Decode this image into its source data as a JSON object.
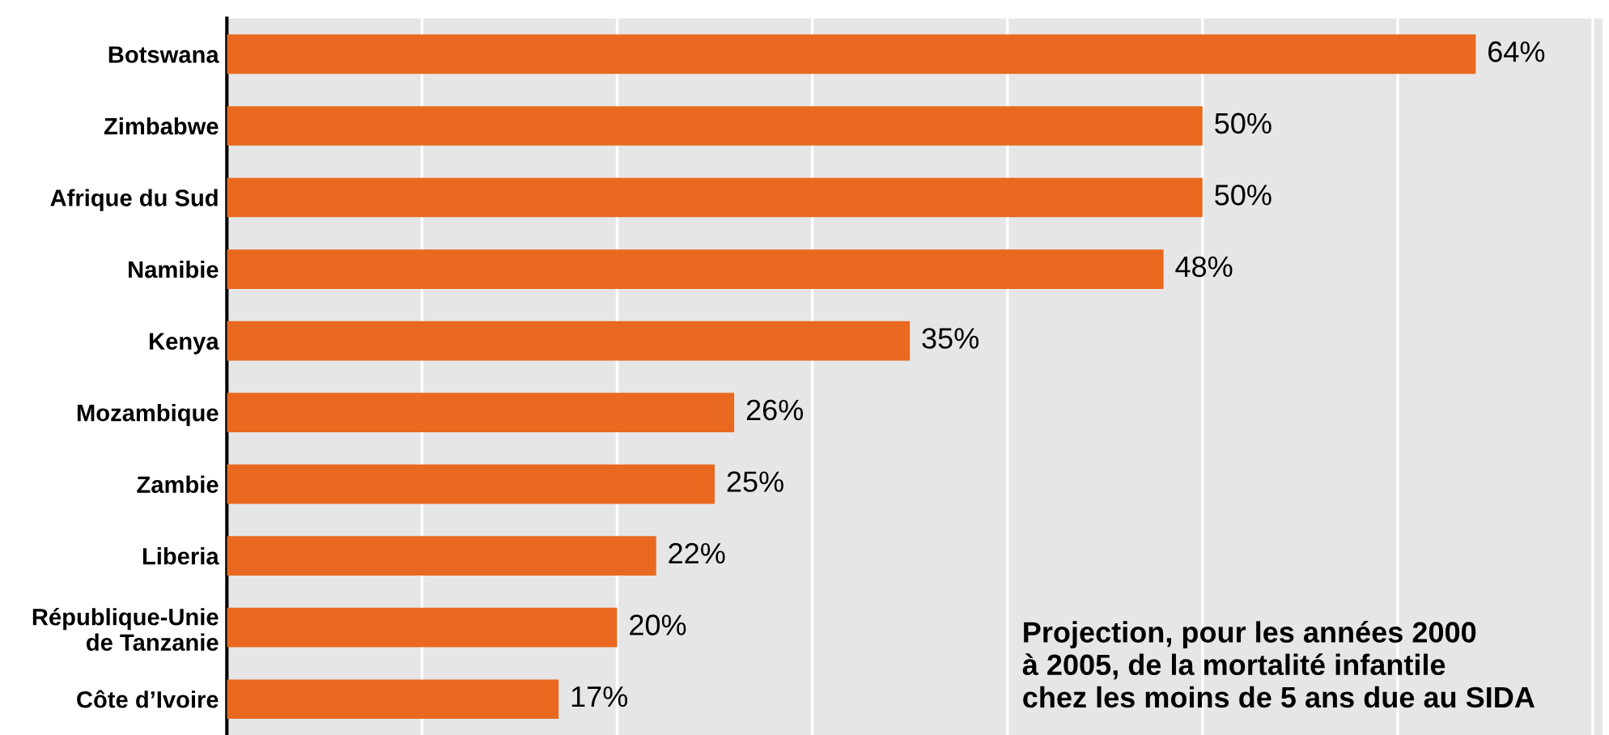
{
  "chart_data": {
    "type": "bar",
    "orientation": "horizontal",
    "categories": [
      "Botswana",
      "Zimbabwe",
      "Afrique du Sud",
      "Namibie",
      "Kenya",
      "Mozambique",
      "Zambie",
      "Liberia",
      "République-Unie\nde Tanzanie",
      "Côte d’Ivoire"
    ],
    "values": [
      64,
      50,
      50,
      48,
      35,
      26,
      25,
      22,
      20,
      17
    ],
    "value_labels": [
      "64%",
      "50%",
      "50%",
      "48%",
      "35%",
      "26%",
      "25%",
      "22%",
      "20%",
      "17%"
    ],
    "color": "#e8691f",
    "xlim": [
      0,
      70.5
    ],
    "xticks": [
      {
        "value": 10,
        "label": null
      },
      {
        "value": 20,
        "label": null
      },
      {
        "value": 30,
        "label": null
      },
      {
        "value": 40,
        "label": null
      },
      {
        "value": 50,
        "label": null
      },
      {
        "value": 60,
        "label": null
      },
      {
        "value": 70,
        "label": null
      }
    ],
    "grid": "x",
    "annotations": [
      "Projection, pour les années 2000\nà 2005, de la mortalité infantile\nchez les moins de 5 ans due au SIDA"
    ]
  }
}
